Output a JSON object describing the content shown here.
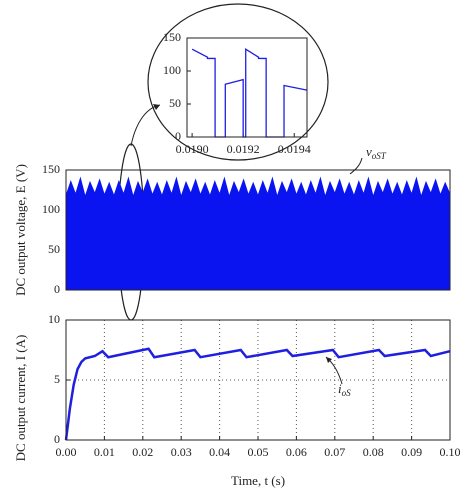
{
  "chart_data": [
    {
      "type": "line",
      "color": "#1f1fe0",
      "x": [
        0.019,
        0.01906,
        0.01906,
        0.01909,
        0.01909,
        0.01913,
        0.01913,
        0.0192,
        0.0192,
        0.01921,
        0.01921,
        0.01926,
        0.01926,
        0.01929,
        0.01929,
        0.01936,
        0.01936,
        0.01945
      ],
      "values": [
        133,
        121,
        119,
        119,
        0,
        0,
        80,
        87,
        0,
        0,
        133,
        121,
        119,
        119,
        0,
        0,
        78,
        71
      ],
      "xlim": [
        0.01898,
        0.01945
      ],
      "ylim": [
        0,
        150
      ],
      "xticks": [
        {
          "value": 0.019,
          "label": "0.0190"
        },
        {
          "value": 0.0192,
          "label": "0.0192"
        },
        {
          "value": 0.0194,
          "label": "0.0194"
        }
      ],
      "yticks": [
        0,
        50,
        100,
        150
      ],
      "grid": false
    },
    {
      "type": "area",
      "color": "#0a14f0",
      "ylabel": "DC output voltage, E (V)",
      "annotation": {
        "text": "v",
        "subscript": "oST"
      },
      "x": [
        0,
        0.00125,
        0.0025,
        0.00375,
        0.005,
        0.00625,
        0.0075,
        0.00875,
        0.01,
        0.01125,
        0.0125,
        0.01375,
        0.015,
        0.01625,
        0.0175,
        0.01875,
        0.02,
        0.02125,
        0.0225,
        0.02375,
        0.025,
        0.02625,
        0.0275,
        0.02875,
        0.03,
        0.03125,
        0.0325,
        0.03375,
        0.035,
        0.03625,
        0.0375,
        0.03875,
        0.04,
        0.04125,
        0.0425,
        0.04375,
        0.045,
        0.04625,
        0.0475,
        0.04875,
        0.05,
        0.05125,
        0.0525,
        0.05375,
        0.055,
        0.05625,
        0.0575,
        0.05875,
        0.06,
        0.06125,
        0.0625,
        0.06375,
        0.065,
        0.06625,
        0.0675,
        0.06875,
        0.07,
        0.07125,
        0.0725,
        0.07375,
        0.075,
        0.07625,
        0.0775,
        0.07875,
        0.08,
        0.08125,
        0.0825,
        0.08375,
        0.085,
        0.08625,
        0.0875,
        0.08875,
        0.09,
        0.09125,
        0.0925,
        0.09375,
        0.095,
        0.09625,
        0.0975,
        0.09875,
        0.1
      ],
      "values": [
        118,
        136,
        120,
        140,
        117,
        135,
        121,
        138,
        119,
        134,
        118,
        136,
        120,
        140,
        117,
        135,
        121,
        138,
        119,
        134,
        118,
        136,
        120,
        140,
        117,
        135,
        121,
        138,
        119,
        134,
        118,
        136,
        120,
        140,
        117,
        135,
        121,
        138,
        119,
        134,
        118,
        136,
        120,
        140,
        117,
        135,
        121,
        138,
        119,
        134,
        118,
        136,
        120,
        140,
        117,
        135,
        121,
        138,
        119,
        134,
        118,
        136,
        120,
        140,
        117,
        135,
        121,
        138,
        119,
        134,
        118,
        136,
        120,
        140,
        117,
        135,
        121,
        138,
        119,
        134,
        120
      ],
      "xlim": [
        0,
        0.1
      ],
      "ylim": [
        0,
        150
      ],
      "yticks": [
        0,
        50,
        100,
        150
      ],
      "grid": false
    },
    {
      "type": "line",
      "color": "#1f1fe0",
      "ylabel": "DC output current, I (A)",
      "xlabel": "Time, t (s)",
      "annotation": {
        "text": "i",
        "subscript": "oS"
      },
      "x": [
        0,
        0.001,
        0.002,
        0.003,
        0.004,
        0.005,
        0.0075,
        0.0095,
        0.011,
        0.0215,
        0.023,
        0.0335,
        0.035,
        0.0455,
        0.047,
        0.0575,
        0.059,
        0.0695,
        0.071,
        0.0815,
        0.083,
        0.0935,
        0.095,
        0.1
      ],
      "values": [
        0,
        2.6,
        4.6,
        5.9,
        6.5,
        6.8,
        7.0,
        7.4,
        6.9,
        7.6,
        6.9,
        7.5,
        6.9,
        7.5,
        6.9,
        7.5,
        7.0,
        7.5,
        6.9,
        7.5,
        7.0,
        7.5,
        7.0,
        7.4
      ],
      "xlim": [
        0,
        0.1
      ],
      "ylim": [
        0,
        10
      ],
      "xticks": [
        {
          "value": 0,
          "label": "0.00"
        },
        {
          "value": 0.01,
          "label": "0.01"
        },
        {
          "value": 0.02,
          "label": "0.02"
        },
        {
          "value": 0.03,
          "label": "0.03"
        },
        {
          "value": 0.04,
          "label": "0.04"
        },
        {
          "value": 0.05,
          "label": "0.05"
        },
        {
          "value": 0.06,
          "label": "0.06"
        },
        {
          "value": 0.07,
          "label": "0.07"
        },
        {
          "value": 0.08,
          "label": "0.08"
        },
        {
          "value": 0.09,
          "label": "0.09"
        },
        {
          "value": 0.1,
          "label": "0.10"
        }
      ],
      "yticks": [
        0,
        5,
        10
      ],
      "grid": true
    }
  ]
}
